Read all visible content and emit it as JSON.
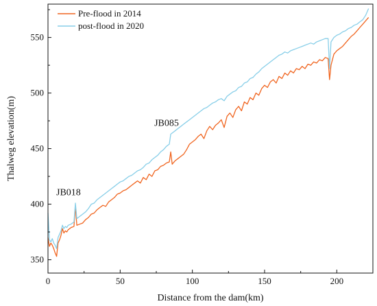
{
  "chart_data": {
    "type": "line",
    "title": "",
    "xlabel": "Distance from the dam(km)",
    "ylabel": "Thalweg elevation(m)",
    "xlim": [
      0,
      225
    ],
    "ylim": [
      338,
      580
    ],
    "xticks": [
      0,
      50,
      100,
      150,
      200
    ],
    "yticks": [
      350,
      400,
      450,
      500,
      550
    ],
    "grid": false,
    "legend_position": "top-left",
    "annotations": [
      {
        "text": "JB018",
        "x": 19,
        "y": 400
      },
      {
        "text": "JB085",
        "x": 85,
        "y": 463
      }
    ],
    "series": [
      {
        "name": "Pre-flood in 2014",
        "color": "#f0641e",
        "points": [
          [
            0,
            370
          ],
          [
            1,
            362
          ],
          [
            2,
            365
          ],
          [
            3,
            363
          ],
          [
            4,
            360
          ],
          [
            5,
            356
          ],
          [
            6,
            353
          ],
          [
            7,
            365
          ],
          [
            8,
            368
          ],
          [
            9,
            372
          ],
          [
            10,
            378
          ],
          [
            11,
            374
          ],
          [
            12,
            376
          ],
          [
            13,
            375
          ],
          [
            14,
            377
          ],
          [
            16,
            379
          ],
          [
            18,
            380
          ],
          [
            19,
            398
          ],
          [
            20,
            381
          ],
          [
            22,
            382
          ],
          [
            24,
            383
          ],
          [
            26,
            386
          ],
          [
            28,
            388
          ],
          [
            30,
            391
          ],
          [
            32,
            392
          ],
          [
            34,
            395
          ],
          [
            36,
            397
          ],
          [
            38,
            399
          ],
          [
            40,
            398
          ],
          [
            42,
            402
          ],
          [
            44,
            404
          ],
          [
            46,
            406
          ],
          [
            48,
            409
          ],
          [
            50,
            410
          ],
          [
            52,
            412
          ],
          [
            54,
            413
          ],
          [
            56,
            415
          ],
          [
            58,
            417
          ],
          [
            60,
            419
          ],
          [
            62,
            421
          ],
          [
            64,
            419
          ],
          [
            66,
            424
          ],
          [
            68,
            422
          ],
          [
            70,
            427
          ],
          [
            72,
            425
          ],
          [
            74,
            430
          ],
          [
            76,
            431
          ],
          [
            78,
            434
          ],
          [
            80,
            435
          ],
          [
            82,
            437
          ],
          [
            84,
            438
          ],
          [
            85,
            447
          ],
          [
            86,
            436
          ],
          [
            88,
            439
          ],
          [
            90,
            441
          ],
          [
            92,
            443
          ],
          [
            94,
            445
          ],
          [
            96,
            449
          ],
          [
            98,
            454
          ],
          [
            100,
            456
          ],
          [
            102,
            458
          ],
          [
            104,
            461
          ],
          [
            106,
            463
          ],
          [
            108,
            459
          ],
          [
            110,
            466
          ],
          [
            112,
            470
          ],
          [
            114,
            467
          ],
          [
            116,
            471
          ],
          [
            118,
            473
          ],
          [
            120,
            476
          ],
          [
            122,
            469
          ],
          [
            124,
            479
          ],
          [
            126,
            482
          ],
          [
            128,
            478
          ],
          [
            130,
            485
          ],
          [
            132,
            488
          ],
          [
            134,
            484
          ],
          [
            136,
            492
          ],
          [
            138,
            490
          ],
          [
            140,
            496
          ],
          [
            142,
            494
          ],
          [
            144,
            500
          ],
          [
            146,
            498
          ],
          [
            148,
            504
          ],
          [
            150,
            507
          ],
          [
            152,
            505
          ],
          [
            154,
            510
          ],
          [
            156,
            512
          ],
          [
            158,
            509
          ],
          [
            160,
            515
          ],
          [
            162,
            513
          ],
          [
            164,
            518
          ],
          [
            166,
            516
          ],
          [
            168,
            520
          ],
          [
            170,
            518
          ],
          [
            172,
            522
          ],
          [
            174,
            521
          ],
          [
            176,
            524
          ],
          [
            178,
            522
          ],
          [
            180,
            526
          ],
          [
            182,
            525
          ],
          [
            184,
            528
          ],
          [
            186,
            527
          ],
          [
            188,
            530
          ],
          [
            190,
            529
          ],
          [
            192,
            532
          ],
          [
            194,
            531
          ],
          [
            195,
            512
          ],
          [
            196,
            525
          ],
          [
            198,
            535
          ],
          [
            200,
            538
          ],
          [
            202,
            540
          ],
          [
            204,
            542
          ],
          [
            206,
            545
          ],
          [
            208,
            548
          ],
          [
            210,
            551
          ],
          [
            212,
            553
          ],
          [
            214,
            556
          ],
          [
            216,
            559
          ],
          [
            218,
            562
          ],
          [
            220,
            565
          ],
          [
            222,
            568
          ]
        ]
      },
      {
        "name": "post-flood in 2020",
        "color": "#87cee8",
        "points": [
          [
            0,
            392
          ],
          [
            1,
            368
          ],
          [
            2,
            366
          ],
          [
            3,
            369
          ],
          [
            4,
            365
          ],
          [
            5,
            363
          ],
          [
            6,
            360
          ],
          [
            7,
            370
          ],
          [
            8,
            373
          ],
          [
            9,
            376
          ],
          [
            10,
            381
          ],
          [
            11,
            378
          ],
          [
            12,
            380
          ],
          [
            13,
            379
          ],
          [
            14,
            381
          ],
          [
            16,
            382
          ],
          [
            18,
            384
          ],
          [
            19,
            401
          ],
          [
            20,
            387
          ],
          [
            22,
            389
          ],
          [
            24,
            391
          ],
          [
            26,
            393
          ],
          [
            28,
            396
          ],
          [
            30,
            400
          ],
          [
            32,
            401
          ],
          [
            34,
            404
          ],
          [
            36,
            406
          ],
          [
            38,
            408
          ],
          [
            40,
            410
          ],
          [
            42,
            412
          ],
          [
            44,
            414
          ],
          [
            46,
            416
          ],
          [
            48,
            418
          ],
          [
            50,
            420
          ],
          [
            52,
            421
          ],
          [
            54,
            423
          ],
          [
            56,
            425
          ],
          [
            58,
            426
          ],
          [
            60,
            428
          ],
          [
            62,
            430
          ],
          [
            64,
            431
          ],
          [
            66,
            433
          ],
          [
            68,
            436
          ],
          [
            70,
            437
          ],
          [
            72,
            440
          ],
          [
            74,
            442
          ],
          [
            76,
            444
          ],
          [
            78,
            447
          ],
          [
            80,
            449
          ],
          [
            82,
            452
          ],
          [
            84,
            454
          ],
          [
            85,
            463
          ],
          [
            86,
            464
          ],
          [
            88,
            466
          ],
          [
            90,
            468
          ],
          [
            92,
            470
          ],
          [
            94,
            472
          ],
          [
            96,
            474
          ],
          [
            98,
            476
          ],
          [
            100,
            478
          ],
          [
            102,
            480
          ],
          [
            104,
            482
          ],
          [
            106,
            484
          ],
          [
            108,
            486
          ],
          [
            110,
            487
          ],
          [
            112,
            489
          ],
          [
            114,
            491
          ],
          [
            116,
            492
          ],
          [
            118,
            494
          ],
          [
            120,
            495
          ],
          [
            122,
            493
          ],
          [
            124,
            497
          ],
          [
            126,
            499
          ],
          [
            128,
            501
          ],
          [
            130,
            502
          ],
          [
            132,
            505
          ],
          [
            134,
            506
          ],
          [
            136,
            509
          ],
          [
            138,
            510
          ],
          [
            140,
            513
          ],
          [
            142,
            514
          ],
          [
            144,
            517
          ],
          [
            146,
            519
          ],
          [
            148,
            522
          ],
          [
            150,
            524
          ],
          [
            152,
            526
          ],
          [
            154,
            528
          ],
          [
            156,
            530
          ],
          [
            158,
            532
          ],
          [
            160,
            534
          ],
          [
            162,
            535
          ],
          [
            164,
            537
          ],
          [
            166,
            536
          ],
          [
            168,
            538
          ],
          [
            170,
            539
          ],
          [
            172,
            540
          ],
          [
            174,
            541
          ],
          [
            176,
            542
          ],
          [
            178,
            543
          ],
          [
            180,
            544
          ],
          [
            182,
            545
          ],
          [
            184,
            544
          ],
          [
            186,
            546
          ],
          [
            188,
            547
          ],
          [
            190,
            548
          ],
          [
            192,
            549
          ],
          [
            194,
            549
          ],
          [
            195,
            522
          ],
          [
            196,
            546
          ],
          [
            198,
            550
          ],
          [
            200,
            552
          ],
          [
            202,
            553
          ],
          [
            204,
            555
          ],
          [
            206,
            556
          ],
          [
            208,
            558
          ],
          [
            210,
            559
          ],
          [
            212,
            561
          ],
          [
            214,
            562
          ],
          [
            216,
            564
          ],
          [
            218,
            566
          ],
          [
            220,
            570
          ],
          [
            222,
            576
          ]
        ]
      }
    ]
  }
}
